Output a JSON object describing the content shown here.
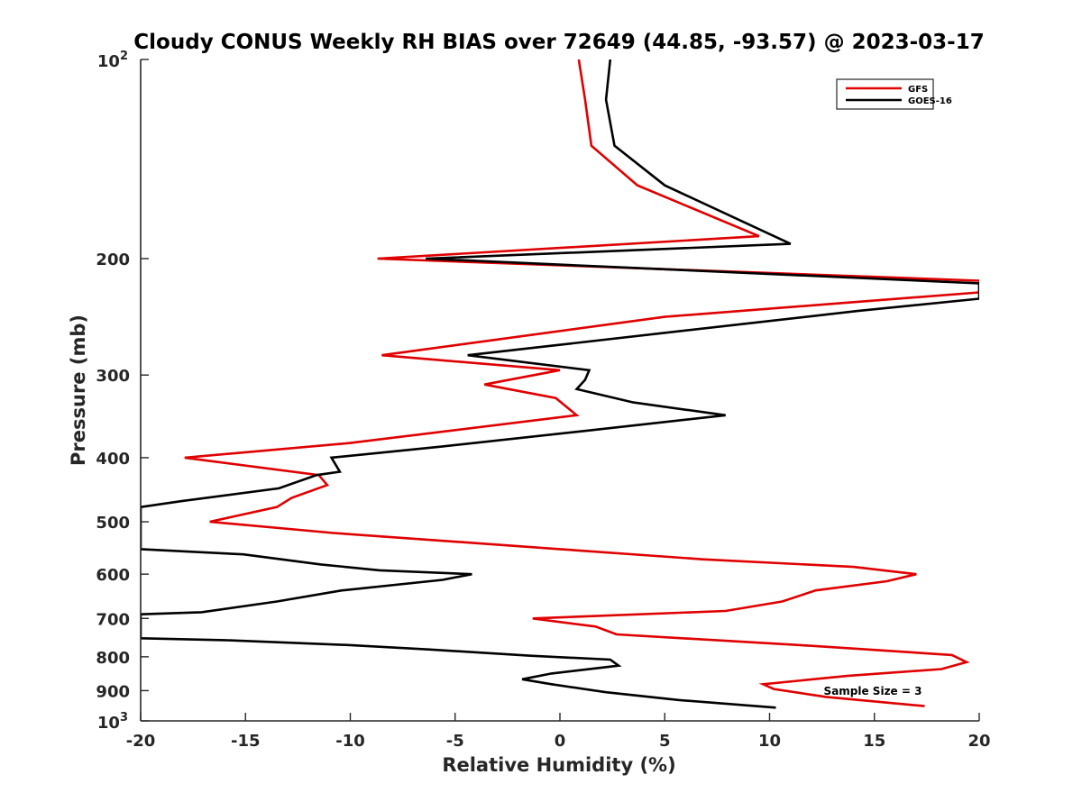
{
  "chart_data": {
    "type": "line",
    "title": "Cloudy CONUS Weekly RH BIAS over 72649 (44.85, -93.57) @ 2023-03-17",
    "xlabel": "Relative Humidity (%)",
    "ylabel": "Pressure (mb)",
    "xlim": [
      -20,
      20
    ],
    "ylim": [
      100,
      1000
    ],
    "y_scale": "log",
    "y_reversed": true,
    "grid": false,
    "legend_position": "top-right",
    "x_ticks": [
      "-20",
      "-15",
      "-10",
      "-5",
      "0",
      "5",
      "10",
      "15",
      "20"
    ],
    "y_ticks": [
      {
        "base": "10",
        "exp": "2"
      },
      {
        "label": "200"
      },
      {
        "label": "300"
      },
      {
        "label": "400"
      },
      {
        "label": "500"
      },
      {
        "label": "600"
      },
      {
        "label": "700"
      },
      {
        "label": "800"
      },
      {
        "label": "900"
      },
      {
        "base": "10",
        "exp": "3"
      }
    ],
    "annotation": "Sample Size = 3",
    "series": [
      {
        "name": "GFS",
        "color": "#e00000",
        "points": [
          [
            0.9,
            100
          ],
          [
            1.2,
            115
          ],
          [
            1.5,
            135
          ],
          [
            3.7,
            155
          ],
          [
            9.5,
            185
          ],
          [
            -8.7,
            200
          ],
          [
            20,
            216
          ],
          [
            20,
            225
          ],
          [
            5.0,
            245
          ],
          [
            -8.5,
            280
          ],
          [
            0.0,
            295
          ],
          [
            -3.6,
            310
          ],
          [
            -0.2,
            325
          ],
          [
            0.8,
            345
          ],
          [
            -10.0,
            380
          ],
          [
            -17.9,
            400
          ],
          [
            -11.5,
            425
          ],
          [
            -11.1,
            440
          ],
          [
            -12.8,
            460
          ],
          [
            -13.5,
            475
          ],
          [
            -16.7,
            500
          ],
          [
            -10.8,
            520
          ],
          [
            0.0,
            550
          ],
          [
            6.9,
            570
          ],
          [
            14.0,
            585
          ],
          [
            17.0,
            600
          ],
          [
            15.6,
            615
          ],
          [
            12.2,
            635
          ],
          [
            10.6,
            660
          ],
          [
            7.9,
            682
          ],
          [
            -1.3,
            700
          ],
          [
            1.7,
            720
          ],
          [
            2.7,
            740
          ],
          [
            12.0,
            770
          ],
          [
            18.7,
            795
          ],
          [
            19.4,
            815
          ],
          [
            18.2,
            835
          ],
          [
            13.7,
            855
          ],
          [
            9.7,
            880
          ],
          [
            10.2,
            895
          ],
          [
            12.7,
            920
          ],
          [
            17.4,
            950
          ]
        ]
      },
      {
        "name": "GOES-16",
        "color": "#000000",
        "points": [
          [
            2.4,
            100
          ],
          [
            2.2,
            115
          ],
          [
            2.6,
            135
          ],
          [
            5.0,
            155
          ],
          [
            11.0,
            190
          ],
          [
            -6.4,
            200
          ],
          [
            20,
            218
          ],
          [
            20,
            230
          ],
          [
            14.2,
            240
          ],
          [
            -4.4,
            280
          ],
          [
            1.4,
            295
          ],
          [
            1.2,
            305
          ],
          [
            0.8,
            315
          ],
          [
            3.5,
            330
          ],
          [
            7.9,
            345
          ],
          [
            1.0,
            365
          ],
          [
            -5.7,
            385
          ],
          [
            -10.9,
            400
          ],
          [
            -10.5,
            420
          ],
          [
            -11.6,
            425
          ],
          [
            -13.4,
            445
          ],
          [
            -18.0,
            465
          ],
          [
            -20,
            475
          ],
          [
            -20,
            550
          ],
          [
            -15.1,
            560
          ],
          [
            -11.4,
            580
          ],
          [
            -8.6,
            592
          ],
          [
            -4.2,
            600
          ],
          [
            -5.6,
            612
          ],
          [
            -10.4,
            635
          ],
          [
            -13.5,
            660
          ],
          [
            -17.1,
            685
          ],
          [
            -20,
            690
          ],
          [
            -20,
            750
          ],
          [
            -16.0,
            755
          ],
          [
            -10.0,
            768
          ],
          [
            -6.2,
            780
          ],
          [
            -1.4,
            797
          ],
          [
            2.4,
            808
          ],
          [
            2.8,
            825
          ],
          [
            -0.4,
            848
          ],
          [
            -1.8,
            865
          ],
          [
            -0.4,
            880
          ],
          [
            2.2,
            905
          ],
          [
            5.7,
            930
          ],
          [
            10.3,
            955
          ]
        ]
      }
    ]
  }
}
